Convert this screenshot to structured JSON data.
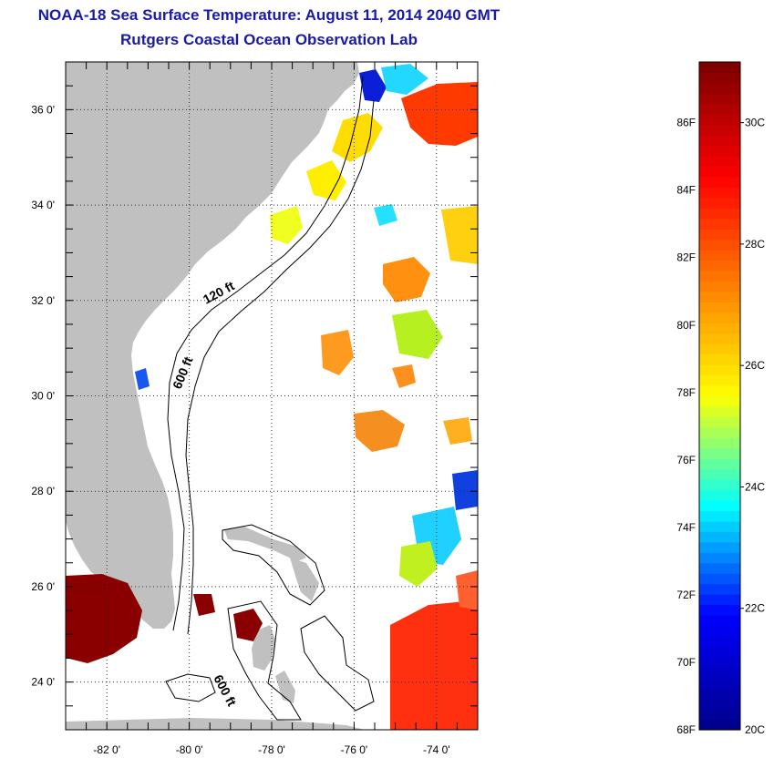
{
  "title": {
    "line1": "NOAA-18 Sea Surface Temperature:  August 11, 2014 2040 GMT",
    "line2": "Rutgers Coastal Ocean Observation Lab"
  },
  "map": {
    "lon_range": [
      -83,
      -73
    ],
    "lat_range": [
      23,
      37
    ],
    "y_ticks": [
      {
        "lat": 36,
        "label": "36 0'"
      },
      {
        "lat": 34,
        "label": "34 0'"
      },
      {
        "lat": 32,
        "label": "32 0'"
      },
      {
        "lat": 30,
        "label": "30 0'"
      },
      {
        "lat": 28,
        "label": "28 0'"
      },
      {
        "lat": 26,
        "label": "26 0'"
      },
      {
        "lat": 24,
        "label": "24 0'"
      }
    ],
    "x_ticks": [
      {
        "lon": -82,
        "label": "-82 0'"
      },
      {
        "lon": -80,
        "label": "-80 0'"
      },
      {
        "lon": -78,
        "label": "-78 0'"
      },
      {
        "lon": -76,
        "label": "-76 0'"
      },
      {
        "lon": -74,
        "label": "-74 0'"
      }
    ],
    "contours": [
      {
        "label": "120 ft"
      },
      {
        "label": "600 ft"
      },
      {
        "label": "600 ft"
      }
    ],
    "colors": {
      "land": "#c0c0c0",
      "grid": "#333333"
    }
  },
  "colorbar": {
    "fahrenheit_labels": [
      "86F",
      "84F",
      "82F",
      "80F",
      "78F",
      "76F",
      "74F",
      "72F",
      "70F",
      "68F"
    ],
    "celsius_labels": [
      "30C",
      "28C",
      "26C",
      "24C",
      "22C",
      "20C"
    ],
    "min_c": 20,
    "max_c": 31,
    "colors": [
      "#00008f",
      "#0000ff",
      "#00ffff",
      "#ffff00",
      "#ff8000",
      "#ff0000",
      "#800000"
    ]
  }
}
